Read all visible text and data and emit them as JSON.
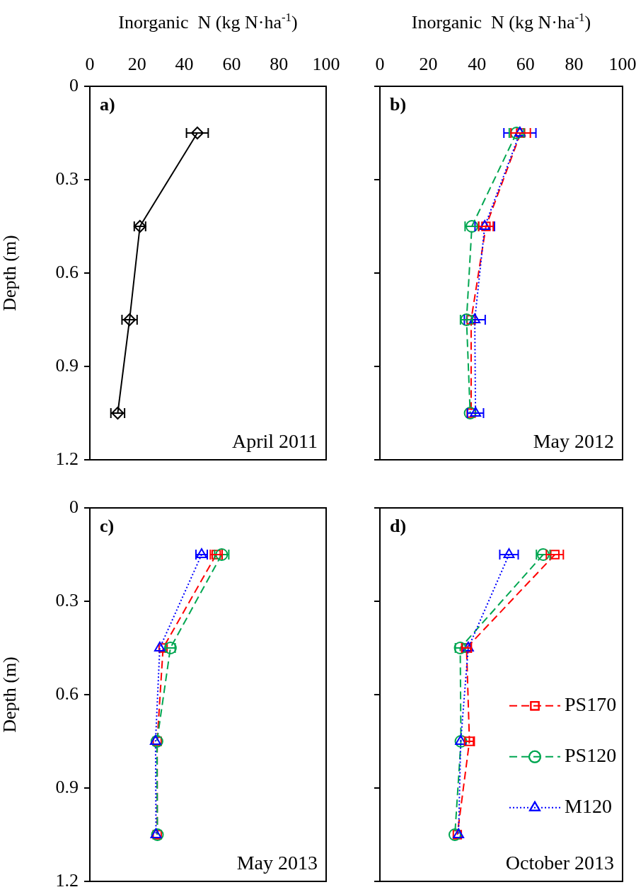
{
  "chart_data": [
    {
      "type": "line",
      "xlabel": "Inorganic  N (kg N·ha$^{-1}$)",
      "ylabel": "Depth (m)",
      "xlim": [
        0,
        100
      ],
      "xticks": [
        0,
        20,
        40,
        60,
        80,
        100
      ],
      "ylim": [
        1.2,
        0
      ],
      "yticks": [
        0,
        0.3,
        0.6,
        0.9,
        1.2
      ],
      "annotations": [
        "a)",
        "April 2011"
      ],
      "series": [
        {
          "color": "#000000",
          "marker": "diamond",
          "line_style": "solid",
          "x": [
            45.5,
            21.2,
            16.8,
            11.8
          ],
          "values": [
            0.15,
            0.45,
            0.75,
            1.05
          ],
          "xerrors": [
            4.6,
            2.4,
            3.2,
            2.9
          ]
        }
      ]
    },
    {
      "type": "line",
      "xlabel": "Inorganic  N (kg N·ha$^{-1}$)",
      "xlim": [
        0,
        100
      ],
      "xticks": [
        0,
        20,
        40,
        60,
        80,
        100
      ],
      "ylim": [
        1.2,
        0
      ],
      "yticks": [
        0,
        0.3,
        0.6,
        0.9,
        1.2
      ],
      "tick_labels": "x",
      "annotations": [
        "b)",
        "May 2012"
      ],
      "series": [
        {
          "color": "#0000ff",
          "marker": "triangle",
          "line_style": "dotted",
          "x": [
            57.7,
            43.2,
            39.1,
            39.4
          ],
          "values": [
            0.15,
            0.45,
            0.75,
            1.05
          ],
          "xerrors": [
            6.6,
            4,
            4.3,
            3.3
          ]
        },
        {
          "color": "#00a651",
          "marker": "circle",
          "line_style": "dashed",
          "x": [
            56.3,
            37.9,
            35.7,
            37.2
          ],
          "values": [
            0.15,
            0.45,
            0.75,
            1.05
          ],
          "xerrors": [
            3,
            2.8,
            2.5,
            null
          ]
        },
        {
          "color": "#ff0000",
          "marker": "square",
          "line_style": "dashed",
          "x": [
            58,
            43.7,
            37.6,
            37.6
          ],
          "values": [
            0.15,
            0.45,
            0.75,
            1.05
          ],
          "xerrors": [
            4,
            3,
            null,
            null
          ]
        }
      ]
    },
    {
      "type": "line",
      "ylabel": "Depth (m)",
      "xlim": [
        0,
        100
      ],
      "xticks": [
        0,
        20,
        40,
        60,
        80,
        100
      ],
      "ylim": [
        1.2,
        0
      ],
      "yticks": [
        0,
        0.3,
        0.6,
        0.9,
        1.2
      ],
      "tick_labels": "y",
      "annotations": [
        "c)",
        "May 2013"
      ],
      "series": [
        {
          "color": "#0000ff",
          "marker": "triangle",
          "line_style": "dotted",
          "x": [
            47.3,
            29.6,
            27.8,
            28
          ],
          "values": [
            0.15,
            0.45,
            0.75,
            1.05
          ],
          "xerrors": [
            2.4,
            null,
            null,
            null
          ]
        },
        {
          "color": "#00a651",
          "marker": "circle",
          "line_style": "dashed",
          "x": [
            55.8,
            34.1,
            28.4,
            28.6
          ],
          "values": [
            0.15,
            0.45,
            0.75,
            1.05
          ],
          "xerrors": [
            3,
            2,
            null,
            null
          ]
        },
        {
          "color": "#ff0000",
          "marker": "square",
          "line_style": "dashed",
          "x": [
            53.5,
            31,
            28.5,
            28.5
          ],
          "values": [
            0.15,
            0.45,
            0.75,
            1.05
          ],
          "xerrors": [
            2.5,
            null,
            null,
            null
          ]
        }
      ]
    },
    {
      "type": "line",
      "xlim": [
        0,
        100
      ],
      "xticks": [
        0,
        20,
        40,
        60,
        80,
        100
      ],
      "ylim": [
        1.2,
        0
      ],
      "yticks": [
        0,
        0.3,
        0.6,
        0.9,
        1.2
      ],
      "tick_labels": false,
      "legend": "right",
      "annotations": [
        "d)",
        "October 2013"
      ],
      "series": [
        {
          "name": "M120",
          "color": "#0000ff",
          "marker": "triangle",
          "line_style": "dotted",
          "x": [
            53.2,
            36.4,
            33.3,
            32.4
          ],
          "values": [
            0.15,
            0.45,
            0.75,
            1.05
          ],
          "xerrors": [
            3.8,
            null,
            null,
            null
          ]
        },
        {
          "name": "PS120",
          "color": "#00a651",
          "marker": "circle",
          "line_style": "dashed",
          "x": [
            67.3,
            33.1,
            33.4,
            30.9
          ],
          "values": [
            0.15,
            0.45,
            0.75,
            1.05
          ],
          "xerrors": [
            2.8,
            2,
            null,
            null
          ]
        },
        {
          "name": "PS170",
          "color": "#ff0000",
          "marker": "square",
          "line_style": "dashed",
          "x": [
            72.1,
            35.7,
            36.9,
            31.9
          ],
          "values": [
            0.15,
            0.45,
            0.75,
            1.05
          ],
          "xerrors": [
            3.5,
            2,
            2,
            null
          ]
        }
      ]
    }
  ]
}
